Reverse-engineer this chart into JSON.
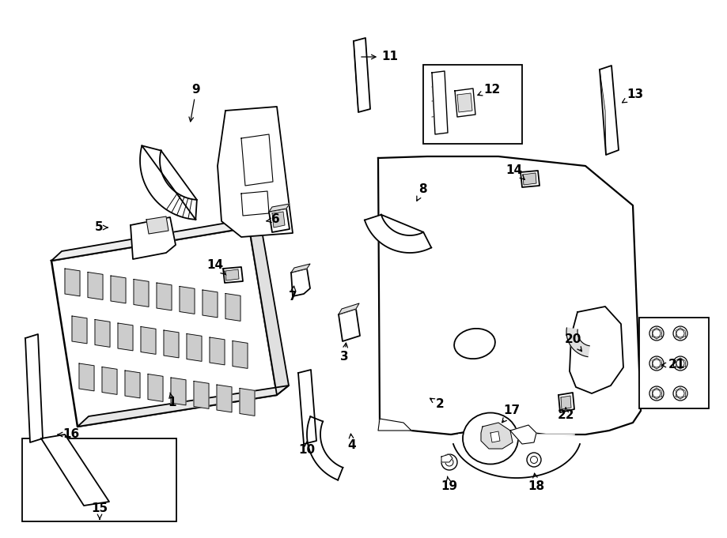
{
  "background_color": "#ffffff",
  "line_color": "#000000",
  "line_width": 1.3,
  "fig_width": 9.0,
  "fig_height": 6.61,
  "dpi": 100
}
